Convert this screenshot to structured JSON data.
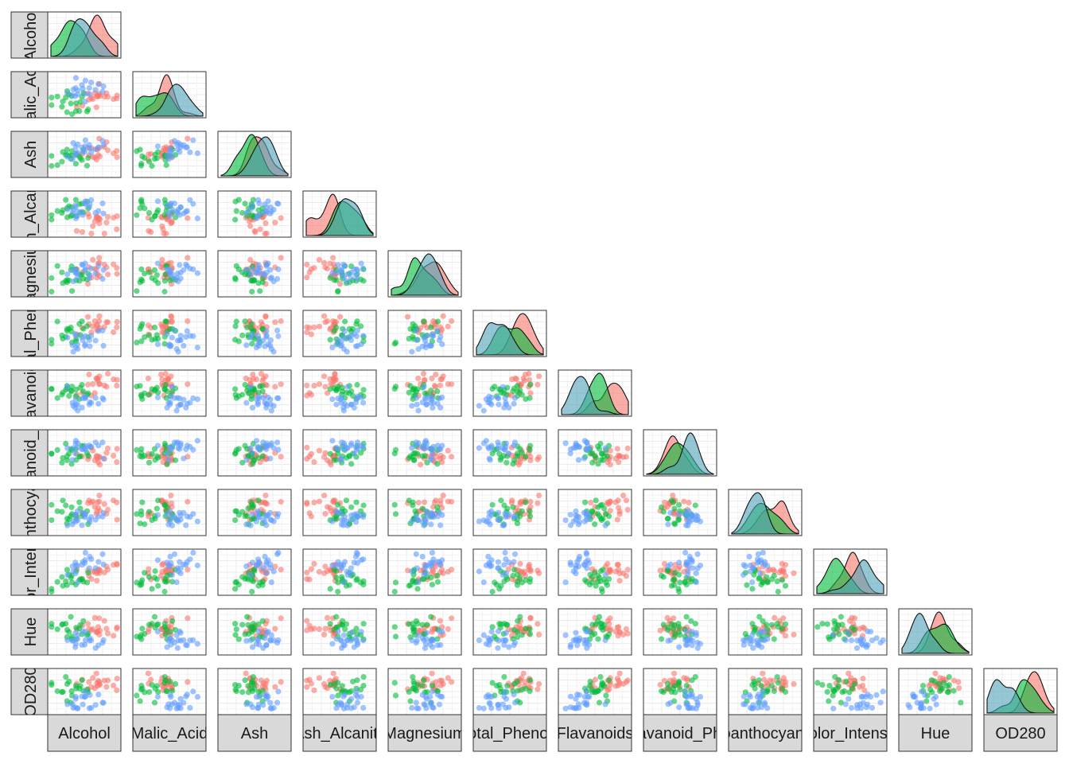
{
  "chart_data": {
    "type": "scatter",
    "plot_kind": "pairs-matrix-lower-triangle",
    "title": "",
    "variables": [
      "Alcohol",
      "Malic_Acid",
      "Ash",
      "Ash_Alcanity",
      "Magnesium",
      "Total_Phenols",
      "Flavanoids",
      "Nonflavanoid_Phenols",
      "Proanthocyanins",
      "Color_Intensity",
      "Hue",
      "OD280"
    ],
    "row_strip_labels": [
      "Alcohol",
      "Malic_Acid",
      "Ash",
      "Ash_Alcanity",
      "Magnesium",
      "Total_Phenols",
      "Flavanoids",
      "Nonflavanoid_Phenols",
      "Proanthocyanins",
      "Color_Intensity",
      "Hue",
      "OD280"
    ],
    "column_strip_labels": [
      "Alcohol",
      "Malic_Acid",
      "Ash",
      "Ash_Alcanity",
      "Magnesium",
      "Total_Phenols",
      "Flavanoids",
      "Nonflavanoid_Phenols",
      "Proanthocyanins",
      "Color_Intensity",
      "Hue",
      "OD280"
    ],
    "diagonal": "density",
    "lower": "points",
    "upper": "blank",
    "legend": "none",
    "grid": true,
    "axis_ticks": false,
    "series_colors": [
      "#F8766D",
      "#00BA38",
      "#619CFF"
    ],
    "density_overlap_color": "#4FA3B8",
    "point_alpha": 0.6,
    "range": [
      -2,
      2
    ],
    "points_per_panel": 60,
    "sample_seed": 7
  },
  "colors": {
    "background": "#FFFFFF",
    "panel_border": "#333333",
    "grid_major": "#EBEBEB",
    "grid_minor": "#F4F4F4",
    "strip_fill": "#D9D9D9",
    "strip_border": "#333333"
  }
}
